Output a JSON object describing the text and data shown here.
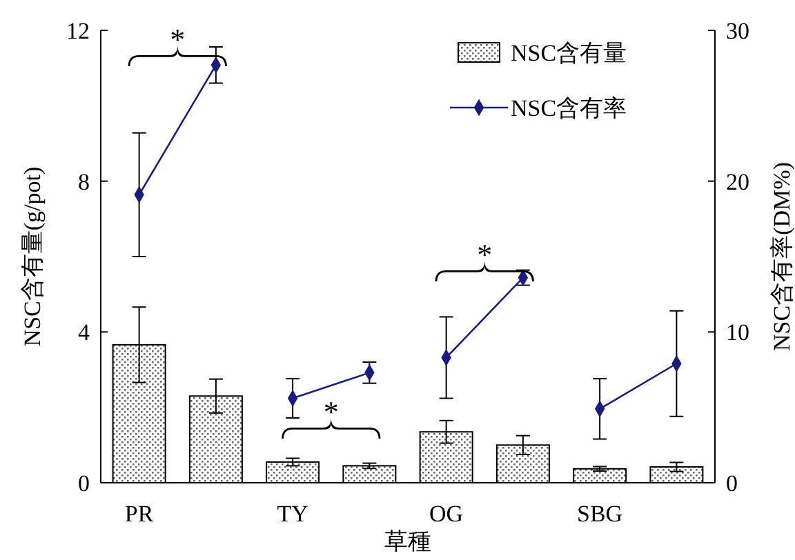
{
  "chart_data": {
    "type": "bar",
    "xlabel": "草種",
    "ylabel": "NSC含有量(g/pot)",
    "y2label": "NSC含有率(DM%)",
    "categories": [
      "PR",
      null,
      "TY",
      null,
      "OG",
      null,
      "SBG",
      null
    ],
    "ylim": [
      0,
      12
    ],
    "yticks": [
      0,
      4,
      8,
      12
    ],
    "y2lim": [
      0,
      30
    ],
    "y2ticks": [
      0,
      10,
      20,
      30
    ],
    "legend": "top right",
    "grid": false,
    "series": [
      {
        "name": "NSC含有量",
        "color": "#000000",
        "values": [
          3.66,
          2.3,
          0.55,
          0.45,
          1.35,
          1.0,
          0.37,
          0.42
        ],
        "errors": [
          1.0,
          0.45,
          0.1,
          0.07,
          0.3,
          0.25,
          0.06,
          0.12
        ]
      },
      {
        "name": "NSC含有率",
        "type": "line",
        "axis": "y2",
        "color": "#1a1a80",
        "marker": "diamond",
        "values": [
          19.1,
          27.7,
          null,
          null,
          null,
          null,
          null,
          null
        ],
        "errors": [
          4.1,
          1.2,
          null,
          null,
          null,
          null,
          null,
          null
        ]
      },
      {
        "type": "line",
        "axis": "y2",
        "color": "#1a1a80",
        "marker": "diamond",
        "values": [
          null,
          null,
          5.6,
          7.3,
          null,
          null,
          null,
          null
        ],
        "errors": [
          null,
          null,
          1.3,
          0.7,
          null,
          null,
          null,
          null
        ]
      },
      {
        "type": "line",
        "axis": "y2",
        "color": "#1a1a80",
        "marker": "diamond",
        "values": [
          null,
          null,
          null,
          null,
          8.3,
          13.6,
          null,
          null
        ],
        "errors": [
          null,
          null,
          null,
          null,
          2.7,
          0.5,
          null,
          null
        ]
      },
      {
        "type": "line",
        "axis": "y2",
        "color": "#1a1a80",
        "marker": "diamond",
        "values": [
          null,
          null,
          null,
          null,
          null,
          null,
          4.9,
          7.9
        ],
        "errors": [
          null,
          null,
          null,
          null,
          null,
          null,
          2.0,
          3.5
        ]
      }
    ],
    "annotations": [
      "*",
      "*",
      "*"
    ]
  }
}
